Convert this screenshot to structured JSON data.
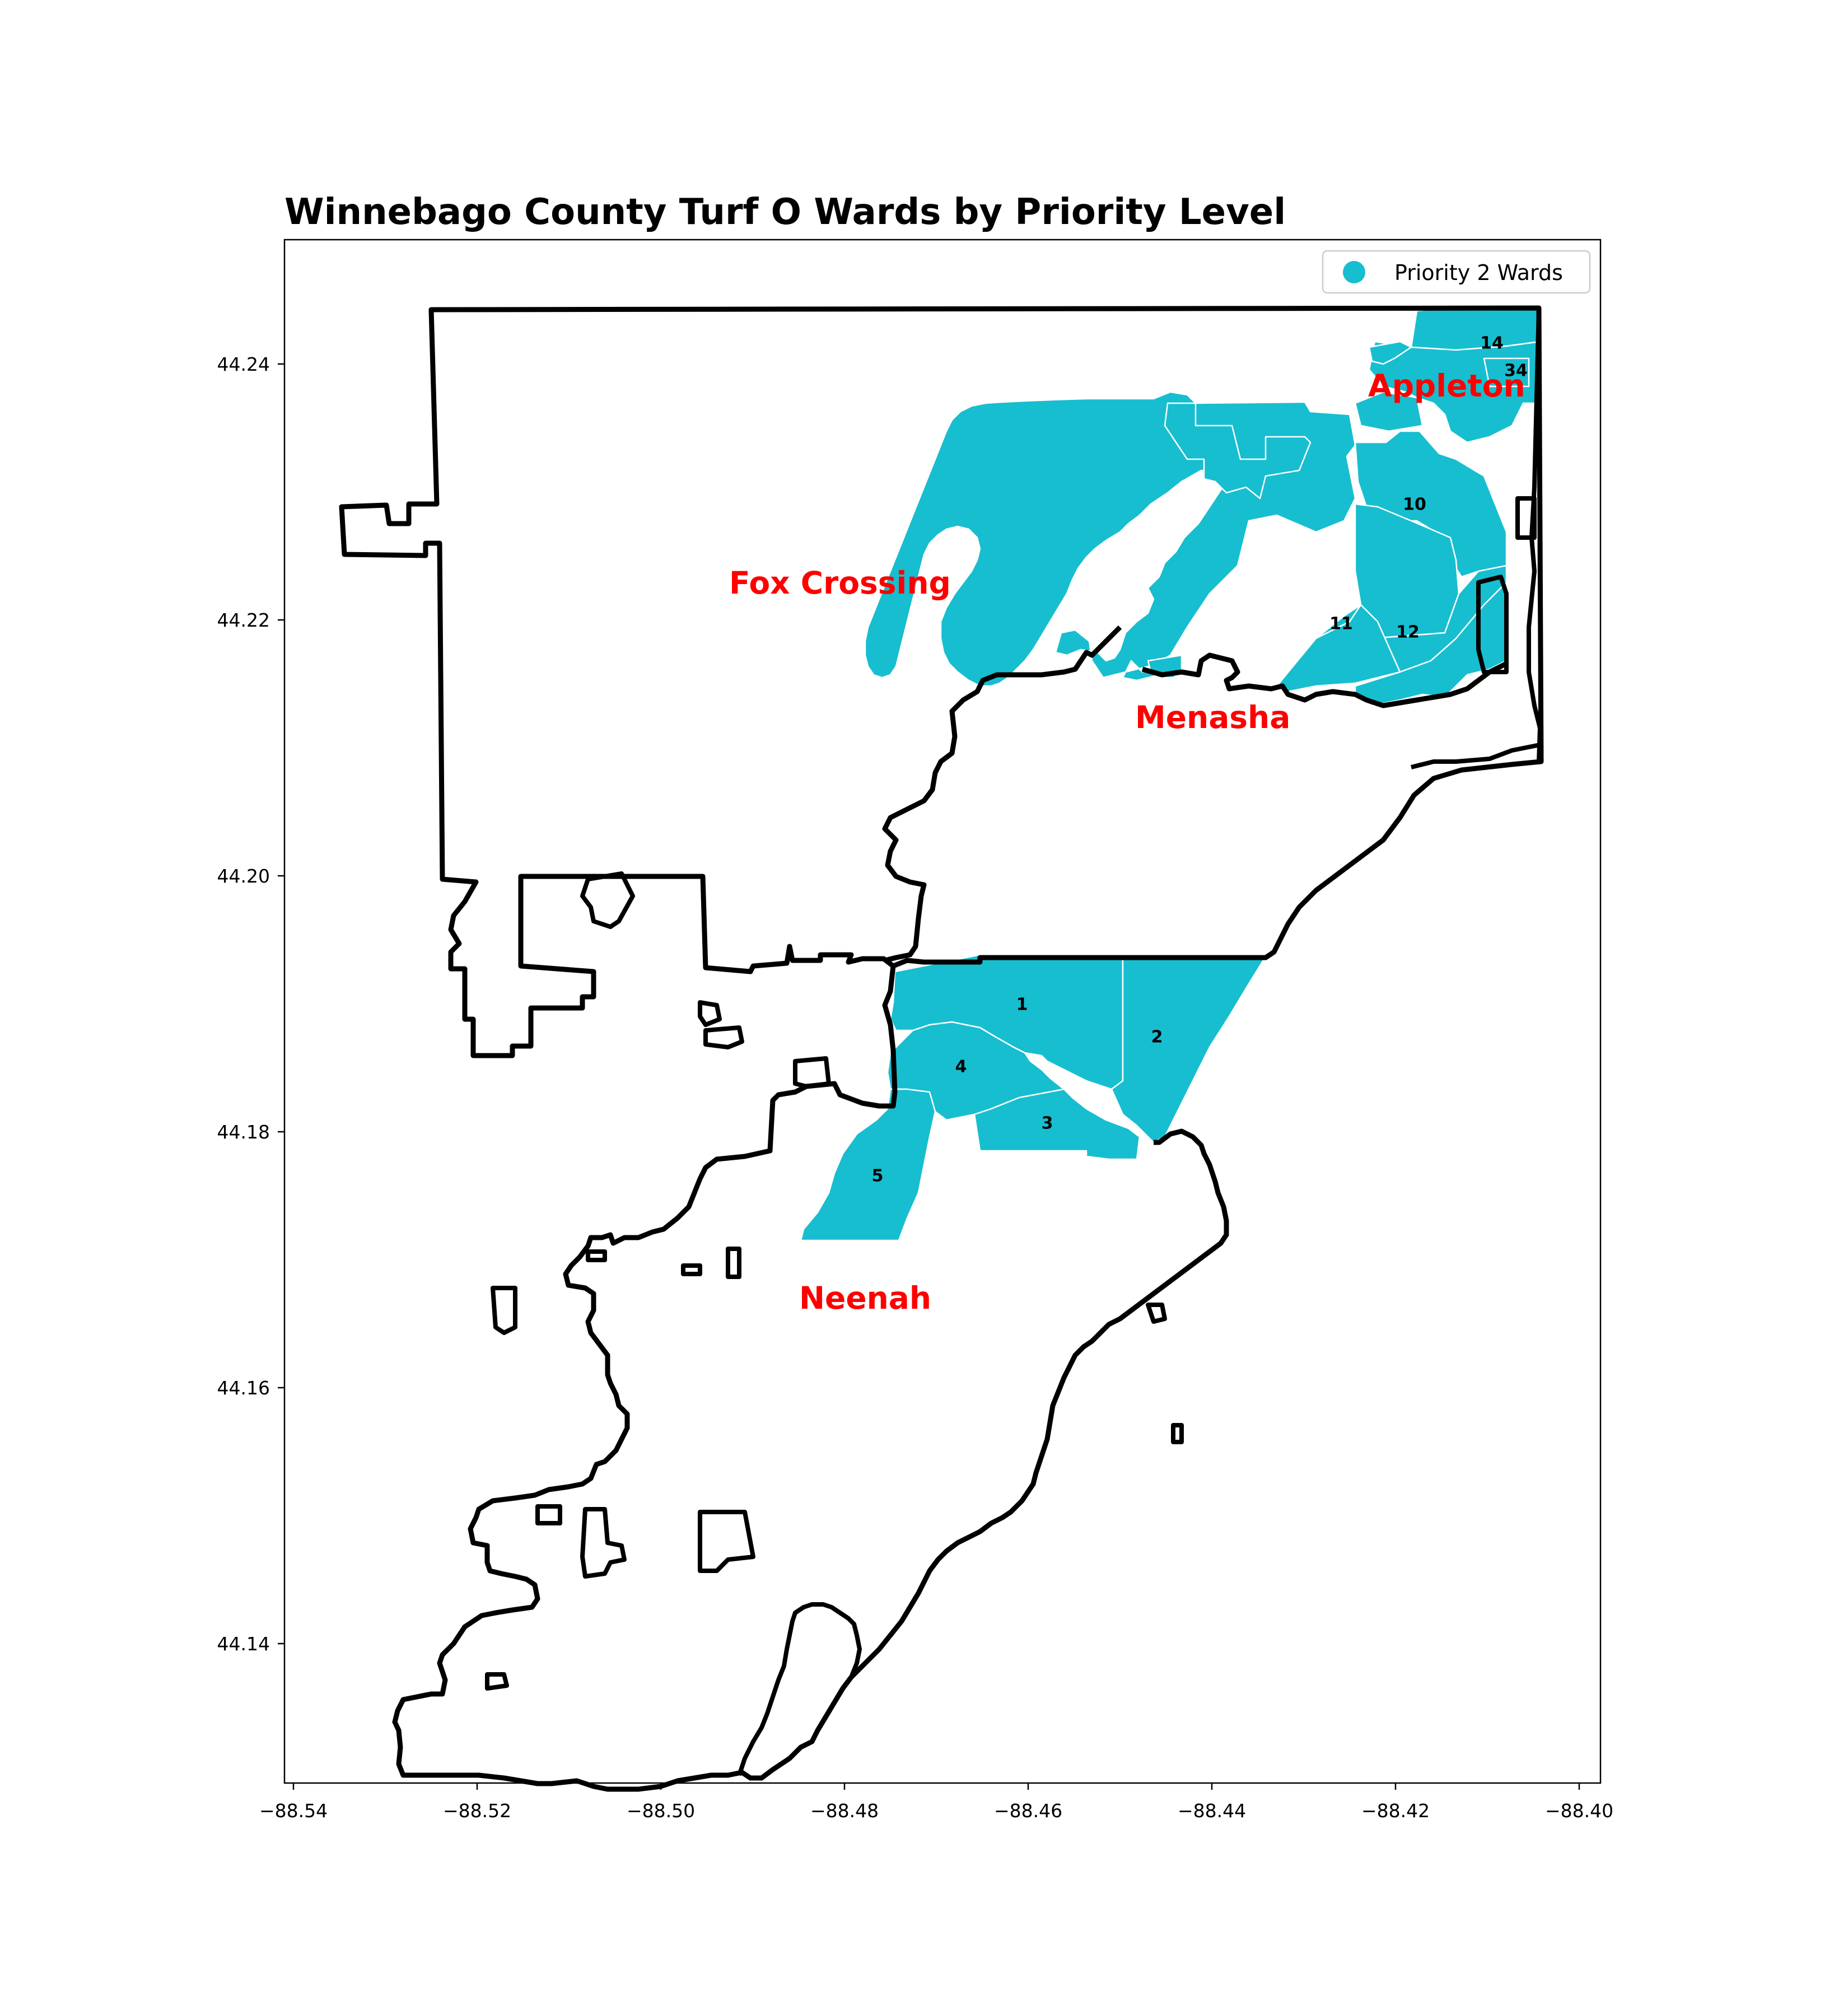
{
  "title": "Winnebago County Turf O Wards by Priority Level",
  "colors": {
    "priority2": "#17becf",
    "city_label": "#ff0000",
    "boundary": "#000000"
  },
  "legend": {
    "label": "Priority 2 Wards",
    "placement": "top-right"
  },
  "axes": {
    "x_ticks": [
      "−88.54",
      "−88.52",
      "−88.50",
      "−88.48",
      "−88.46",
      "−88.44",
      "−88.42",
      "−88.40"
    ],
    "y_ticks": [
      "44.24",
      "44.22",
      "44.20",
      "44.18",
      "44.16",
      "44.14"
    ]
  },
  "cities": [
    "Fox Crossing",
    "Menasha",
    "Appleton",
    "Neenah"
  ],
  "wards": [
    "1",
    "2",
    "3",
    "4",
    "5",
    "10",
    "11",
    "12",
    "14",
    "34"
  ]
}
